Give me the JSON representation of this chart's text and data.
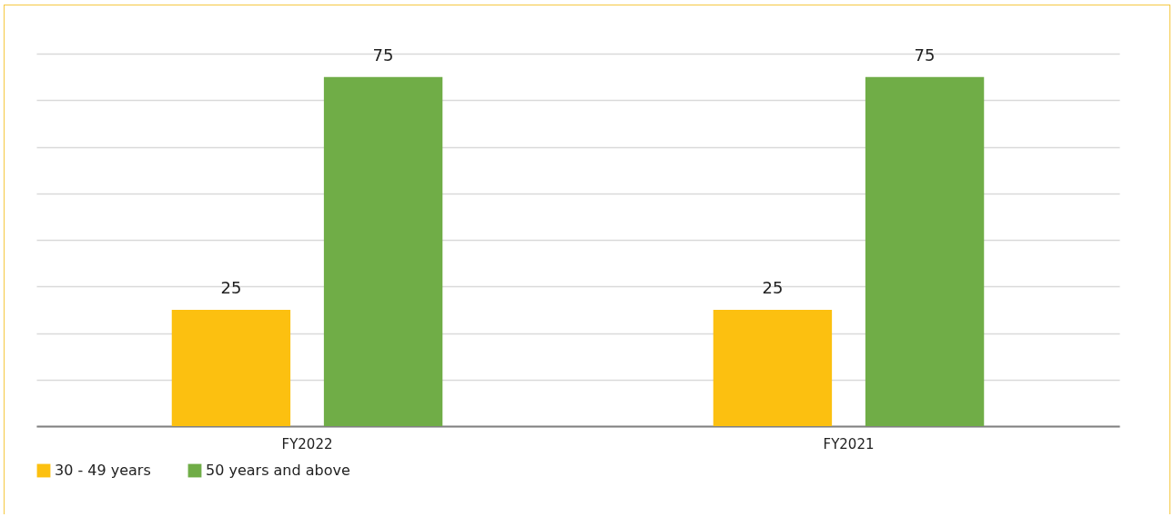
{
  "chart_data": {
    "type": "bar",
    "categories": [
      "FY2022",
      "FY2021"
    ],
    "series": [
      {
        "name": "30 - 49 years",
        "color": "#fcc010",
        "values": [
          25,
          25
        ]
      },
      {
        "name": "50 years and above",
        "color": "#70ad47",
        "values": [
          75,
          75
        ]
      }
    ],
    "ylim": [
      0,
      80
    ],
    "yticks": [
      {
        "value": 0,
        "label": null
      },
      {
        "value": 10,
        "label": null
      },
      {
        "value": 20,
        "label": null
      },
      {
        "value": 30,
        "label": null
      },
      {
        "value": 40,
        "label": null
      },
      {
        "value": 50,
        "label": null
      },
      {
        "value": 60,
        "label": null
      },
      {
        "value": 70,
        "label": null
      },
      {
        "value": 80,
        "label": null
      }
    ],
    "tick_labels": "x",
    "grid": "y",
    "legend": "bottom",
    "data_labels": true
  }
}
